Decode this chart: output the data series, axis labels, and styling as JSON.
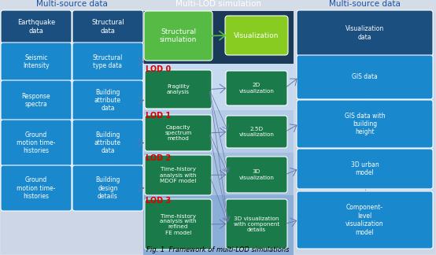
{
  "fig_width": 5.54,
  "fig_height": 3.24,
  "dpi": 100,
  "bg_outer": "#d4dce8",
  "left_panel_bg": "#ccd6e6",
  "right_panel_bg": "#ccd6e6",
  "center_top_bg": "#1b3a5a",
  "lod_colors": [
    "#c5d9f0",
    "#b5cce8",
    "#a5bfe0",
    "#8aaed8"
  ],
  "dark_blue": "#1b4f80",
  "mid_blue": "#1a88cc",
  "green_sim": "#55bb44",
  "green_vis": "#88cc22",
  "dark_green": "#1a7a4a",
  "title_blue": "#1a50a0",
  "title_white": "#ffffff",
  "lod_red": "#dd0000",
  "arrow_gray": "#6677aa",
  "line_gray": "#8899aa",
  "caption": "Fig. 1  Framework of multi-LOD simulations",
  "left_title": "Multi-source data",
  "center_title": "Multi-LOD simulation",
  "right_title": "Multi-source data",
  "left_col1_texts": [
    "Earthquake\ndata",
    "Seismic\nIntensity",
    "Response\nspectra",
    "Ground\nmotion time-\nhistories",
    "Ground\nmotion time-\nhistories"
  ],
  "left_col2_texts": [
    "Structural\ndata",
    "Structural\ntype data",
    "Building\nattribute\ndata",
    "Building\nattribute\ndata",
    "Building\ndesign\ndetails"
  ],
  "left_col1_dark": [
    true,
    false,
    false,
    false,
    false
  ],
  "center_left_texts": [
    "Fragility\nanalysis",
    "Capacity\nspectrum\nmethod",
    "Time-history\nanalysis with\nMDOF model",
    "Time-history\nanalysis with\nrefined\nFE model"
  ],
  "center_right_texts": [
    "2D\nvisualization",
    "2.5D\nvisualization",
    "3D\nvisualization",
    "3D visualization\nwith component\ndetails"
  ],
  "lod_labels": [
    "LOD 0",
    "LOD 1",
    "LOD 2",
    "LOD 3"
  ],
  "right_texts": [
    "Visualization\ndata",
    "GIS data",
    "GIS data with\nbuilding\nheight",
    "3D urban\nmodel",
    "Component-\nlevel\nvisualization\nmodel"
  ],
  "right_dark": [
    true,
    false,
    false,
    false,
    false
  ]
}
